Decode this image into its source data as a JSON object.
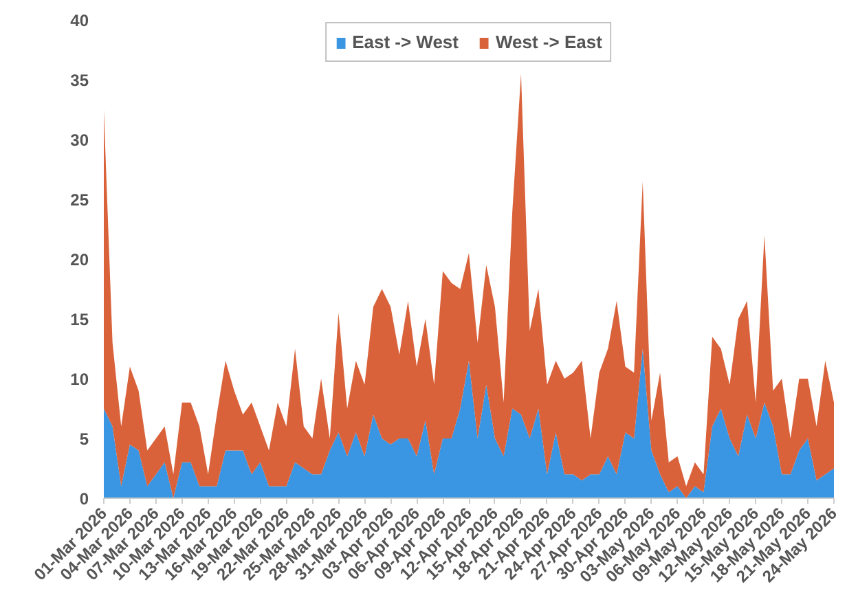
{
  "chart_data": {
    "type": "area",
    "stacked": true,
    "x": [
      "2026-03-01",
      "2026-03-02",
      "2026-03-03",
      "2026-03-04",
      "2026-03-05",
      "2026-03-06",
      "2026-03-07",
      "2026-03-08",
      "2026-03-09",
      "2026-03-10",
      "2026-03-11",
      "2026-03-12",
      "2026-03-13",
      "2026-03-14",
      "2026-03-15",
      "2026-03-16",
      "2026-03-17",
      "2026-03-18",
      "2026-03-19",
      "2026-03-20",
      "2026-03-21",
      "2026-03-22",
      "2026-03-23",
      "2026-03-24",
      "2026-03-25",
      "2026-03-26",
      "2026-03-27",
      "2026-03-28",
      "2026-03-29",
      "2026-03-30",
      "2026-03-31",
      "2026-04-01",
      "2026-04-02",
      "2026-04-03",
      "2026-04-04",
      "2026-04-05",
      "2026-04-06",
      "2026-04-07",
      "2026-04-08",
      "2026-04-09",
      "2026-04-10",
      "2026-04-11",
      "2026-04-12",
      "2026-04-13",
      "2026-04-14",
      "2026-04-15",
      "2026-04-16",
      "2026-04-17",
      "2026-04-18",
      "2026-04-19",
      "2026-04-20",
      "2026-04-21",
      "2026-04-22",
      "2026-04-23",
      "2026-04-24",
      "2026-04-25",
      "2026-04-26",
      "2026-04-27",
      "2026-04-28",
      "2026-04-29",
      "2026-04-30",
      "2026-05-01",
      "2026-05-02",
      "2026-05-03",
      "2026-05-04",
      "2026-05-05",
      "2026-05-06",
      "2026-05-07",
      "2026-05-08",
      "2026-05-09",
      "2026-05-10",
      "2026-05-11",
      "2026-05-12",
      "2026-05-13",
      "2026-05-14",
      "2026-05-15",
      "2026-05-16",
      "2026-05-17",
      "2026-05-18",
      "2026-05-19",
      "2026-05-20",
      "2026-05-21",
      "2026-05-22",
      "2026-05-23",
      "2026-05-24"
    ],
    "series": [
      {
        "name": "East -> West",
        "color": "#3a96e2",
        "values": [
          7.5,
          6,
          1,
          4.5,
          4,
          1,
          2,
          3,
          0,
          3,
          3,
          1,
          1,
          1,
          4,
          4,
          4,
          2,
          3,
          1,
          1,
          1,
          3,
          2.5,
          2,
          2,
          4,
          5.5,
          3.5,
          5.5,
          3.5,
          7,
          5,
          4.5,
          5,
          5,
          3.5,
          6.5,
          2,
          5,
          5,
          7.5,
          11.5,
          5,
          9.5,
          5,
          3.5,
          7.5,
          7,
          5,
          7.5,
          2,
          5.5,
          2,
          2,
          1.5,
          2,
          2,
          3.5,
          2,
          5.5,
          5,
          12.5,
          4,
          2,
          0.5,
          1,
          0,
          1,
          0.5,
          6,
          7.5,
          5,
          3.5,
          7,
          5,
          8,
          6,
          2,
          2,
          4,
          5,
          1.5,
          2,
          2.5
        ]
      },
      {
        "name": "West -> East",
        "color": "#d9623b",
        "values": [
          25,
          7,
          5,
          6.5,
          5,
          3,
          3,
          3,
          2,
          5,
          5,
          5,
          1,
          6,
          7.5,
          5,
          3,
          6,
          3,
          3,
          7,
          5,
          9.5,
          3.5,
          3,
          8,
          1,
          10,
          4,
          6,
          6,
          9,
          12.5,
          11.5,
          7,
          11.5,
          7.5,
          8.5,
          7.5,
          14,
          13,
          10,
          9,
          8,
          10,
          11,
          4.5,
          16.5,
          28.5,
          9,
          10,
          7.5,
          6,
          8,
          8.5,
          10,
          3,
          8.5,
          9,
          14.5,
          5.5,
          5.5,
          14,
          2.5,
          8.5,
          2.5,
          2.5,
          1,
          2,
          1.5,
          7.5,
          5,
          4.5,
          11.5,
          9.5,
          3,
          14,
          3,
          8,
          3,
          6,
          5,
          4.5,
          9.5,
          5.5
        ]
      }
    ],
    "ylim": [
      0,
      40
    ],
    "yticks": [
      0,
      5,
      10,
      15,
      20,
      25,
      30,
      35,
      40
    ],
    "xlim": [
      "2026-03-01",
      "2026-05-24"
    ],
    "xticks": [
      {
        "value": "2026-03-01",
        "label": "01-Mar 2026"
      },
      {
        "value": "2026-03-04",
        "label": "04-Mar 2026"
      },
      {
        "value": "2026-03-07",
        "label": "07-Mar 2026"
      },
      {
        "value": "2026-03-10",
        "label": "10-Mar 2026"
      },
      {
        "value": "2026-03-13",
        "label": "13-Mar 2026"
      },
      {
        "value": "2026-03-16",
        "label": "16-Mar 2026"
      },
      {
        "value": "2026-03-19",
        "label": "19-Mar 2026"
      },
      {
        "value": "2026-03-22",
        "label": "22-Mar 2026"
      },
      {
        "value": "2026-03-25",
        "label": "25-Mar 2026"
      },
      {
        "value": "2026-03-28",
        "label": "28-Mar 2026"
      },
      {
        "value": "2026-03-31",
        "label": "31-Mar 2026"
      },
      {
        "value": "2026-04-03",
        "label": "03-Apr 2026"
      },
      {
        "value": "2026-04-06",
        "label": "06-Apr 2026"
      },
      {
        "value": "2026-04-09",
        "label": "09-Apr 2026"
      },
      {
        "value": "2026-04-12",
        "label": "12-Apr 2026"
      },
      {
        "value": "2026-04-15",
        "label": "15-Apr 2026"
      },
      {
        "value": "2026-04-18",
        "label": "18-Apr 2026"
      },
      {
        "value": "2026-04-21",
        "label": "21-Apr 2026"
      },
      {
        "value": "2026-04-24",
        "label": "24-Apr 2026"
      },
      {
        "value": "2026-04-27",
        "label": "27-Apr 2026"
      },
      {
        "value": "2026-04-30",
        "label": "30-Apr 2026"
      },
      {
        "value": "2026-05-03",
        "label": "03-May 2026"
      },
      {
        "value": "2026-05-06",
        "label": "06-May 2026"
      },
      {
        "value": "2026-05-09",
        "label": "09-May 2026"
      },
      {
        "value": "2026-05-12",
        "label": "12-May 2026"
      },
      {
        "value": "2026-05-15",
        "label": "15-May 2026"
      },
      {
        "value": "2026-05-18",
        "label": "18-May 2026"
      },
      {
        "value": "2026-05-21",
        "label": "21-May 2026"
      },
      {
        "value": "2026-05-24",
        "label": "24-May 2026"
      }
    ],
    "grid": false,
    "legend": "top"
  }
}
